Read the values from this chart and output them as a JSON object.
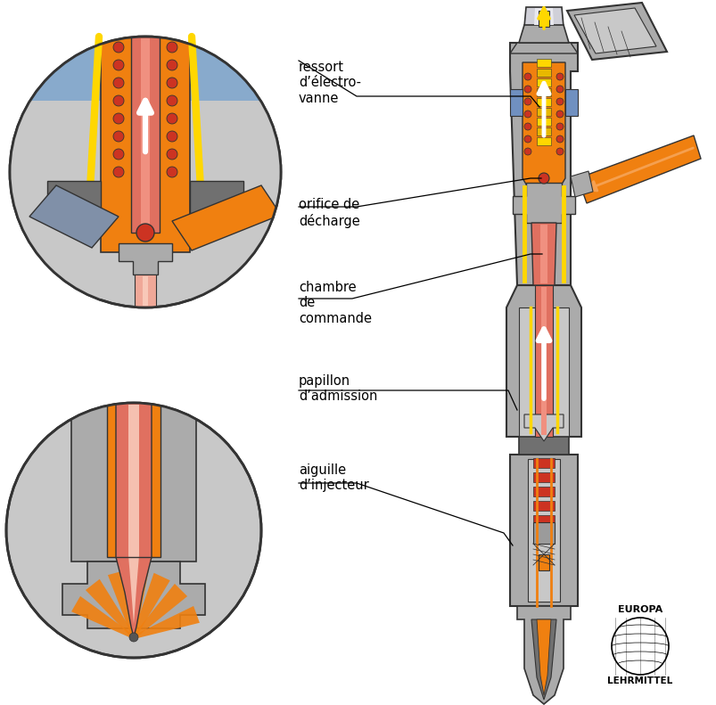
{
  "bg_color": "#ffffff",
  "labels": {
    "ressort": "ressort\nd’électro-\nvanne",
    "orifice": "orifice de\ndécharge",
    "chambre": "chambre\nde\ncommande",
    "papillon": "papillon\nd’admission",
    "aiguille": "aiguille\nd’injecteur"
  },
  "colors": {
    "orange": "#F08010",
    "orange_light": "#F5A030",
    "orange_arrow": "#F5A050",
    "gray": "#9B9B9B",
    "gray_dark": "#707070",
    "gray_light": "#C8C8C8",
    "gray_medium": "#ABABAB",
    "gray_blue": "#8090A8",
    "red_salmon": "#E07060",
    "red_light": "#F09080",
    "yellow": "#FFD700",
    "blue_light": "#7090C0",
    "blue_mid": "#4070A0",
    "dark_outline": "#333333",
    "white": "#FFFFFF",
    "red_dot": "#CC3322",
    "pink": "#F0A898",
    "silver": "#D0D0D8"
  }
}
